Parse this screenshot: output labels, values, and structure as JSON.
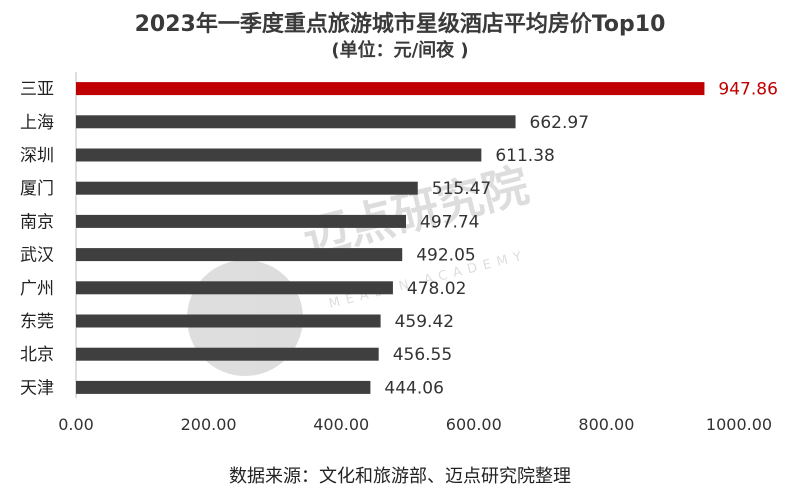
{
  "chart_data": {
    "type": "bar",
    "orientation": "horizontal",
    "title": "2023年一季度重点旅游城市星级酒店平均房价Top10",
    "subtitle": "(单位：元/间夜 )",
    "source": "数据来源：文化和旅游部、迈点研究院整理",
    "categories": [
      "三亚",
      "上海",
      "深圳",
      "厦门",
      "南京",
      "武汉",
      "广州",
      "东莞",
      "北京",
      "天津"
    ],
    "values": [
      947.86,
      662.97,
      611.38,
      515.47,
      497.74,
      492.05,
      478.02,
      459.42,
      456.55,
      444.06
    ],
    "value_labels": [
      "947.86",
      "662.97",
      "611.38",
      "515.47",
      "497.74",
      "492.05",
      "478.02",
      "459.42",
      "456.55",
      "444.06"
    ],
    "xlim": [
      0,
      1000
    ],
    "xticks": [
      "0.00",
      "200.00",
      "400.00",
      "600.00",
      "800.00",
      "1000.00"
    ],
    "grid": false,
    "colors": {
      "highlight": "#c00000",
      "default": "#3f3f3f"
    }
  },
  "watermark": {
    "text": "迈点研究院",
    "subtext": "MEADIN ACADEMY"
  }
}
